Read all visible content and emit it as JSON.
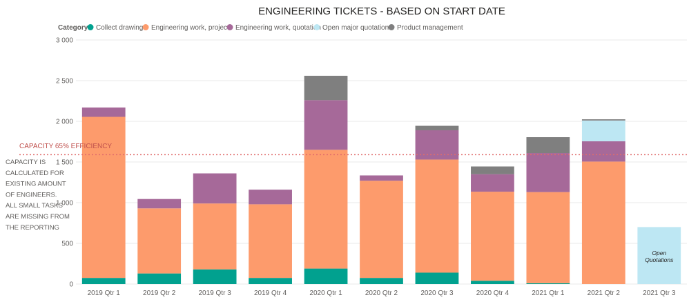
{
  "chart_data": {
    "type": "bar",
    "stacked": true,
    "title": "ENGINEERING TICKETS - BASED ON START DATE",
    "legend_title": "Category",
    "legend_position": "top-left",
    "xlabel": "",
    "ylabel": "",
    "ylim": [
      0,
      3000
    ],
    "yticks": [
      0,
      500,
      1000,
      1500,
      2000,
      2500,
      3000
    ],
    "ytick_labels": [
      "0",
      "500",
      "1 000",
      "1 500",
      "2 000",
      "2 500",
      "3 000"
    ],
    "grid": true,
    "categories": [
      "2019 Qtr 1",
      "2019 Qtr 2",
      "2019 Qtr 3",
      "2019 Qtr 4",
      "2020 Qtr 1",
      "2020 Qtr 2",
      "2020 Qtr 3",
      "2020 Qtr 4",
      "2021 Qtr 1",
      "2021 Qtr 2",
      "2021 Qtr 3"
    ],
    "series": [
      {
        "name": "Collect drawings",
        "color": "#01a18f",
        "values": [
          75,
          130,
          180,
          75,
          190,
          75,
          140,
          40,
          10,
          0,
          0
        ]
      },
      {
        "name": "Engineering work, projects",
        "color": "#fd9b6c",
        "values": [
          1980,
          800,
          810,
          905,
          1460,
          1195,
          1390,
          1095,
          1120,
          1505,
          0
        ]
      },
      {
        "name": "Engineering work, quotation",
        "color": "#a66999",
        "values": [
          115,
          115,
          370,
          180,
          610,
          65,
          360,
          215,
          480,
          250,
          0
        ]
      },
      {
        "name": "Open major quotations",
        "color": "#bde7f3",
        "values": [
          0,
          0,
          0,
          0,
          0,
          0,
          0,
          0,
          0,
          255,
          700
        ]
      },
      {
        "name": "Product management",
        "color": "#7f7f7f",
        "values": [
          0,
          0,
          0,
          0,
          300,
          0,
          55,
          95,
          195,
          15,
          0
        ]
      }
    ],
    "reference_line": {
      "label": "CAPACITY 65% EFFICIENCY",
      "value": 1590,
      "color": "#e06b6b",
      "style": "dotted"
    },
    "annotations": [
      {
        "category": "2021 Qtr 3",
        "lines": [
          "Open",
          "Quotations"
        ]
      }
    ]
  },
  "side_note": {
    "lines": [
      "CAPACITY IS",
      "CALCULATED FOR",
      "EXISTING AMOUNT",
      "OF ENGINEERS.",
      "ALL SMALL TASKS",
      "ARE MISSING FROM",
      "THE REPORTING"
    ]
  }
}
